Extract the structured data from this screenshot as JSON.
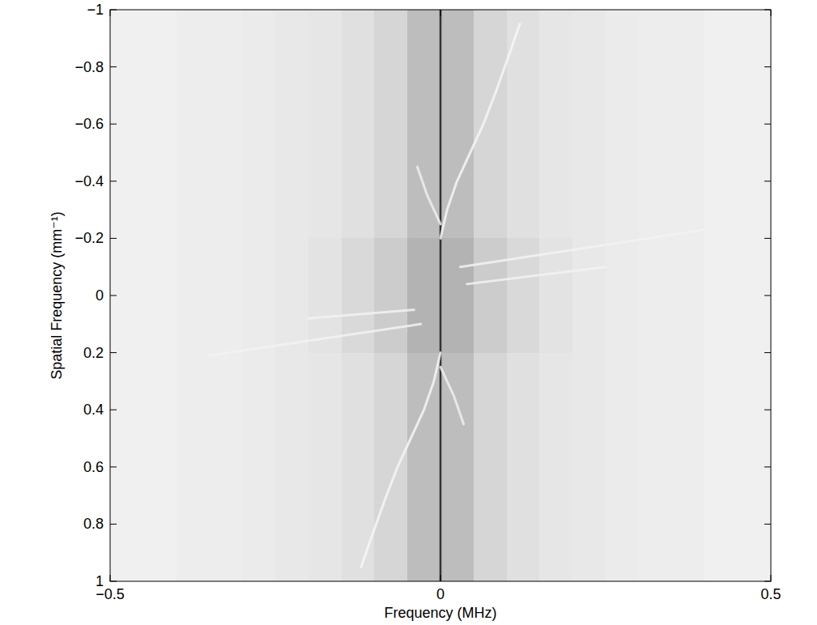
{
  "chart_data": {
    "type": "heatmap",
    "xlabel": "Frequency (MHz)",
    "ylabel": "Spatial Frequency (mm⁻¹)",
    "xlim": [
      -0.5,
      0.5
    ],
    "ylim": [
      -1,
      1
    ],
    "xticks": [
      {
        "value": -0.5,
        "label": "−0.5"
      },
      0,
      0.5
    ],
    "yticks": [
      {
        "value": -1,
        "label": "−1"
      },
      {
        "value": -0.8,
        "label": "−0.8"
      },
      {
        "value": -0.6,
        "label": "−0.6"
      },
      {
        "value": -0.4,
        "label": "−0.4"
      },
      {
        "value": -0.2,
        "label": "−0.2"
      },
      0,
      0.2,
      0.4,
      0.6,
      0.8,
      1
    ],
    "grid": false,
    "zlim": [
      0,
      1
    ],
    "cell_x": [
      -0.5,
      -0.45,
      -0.4,
      -0.35,
      -0.3,
      -0.25,
      -0.2,
      -0.15,
      -0.1,
      -0.05,
      0,
      0.05,
      0.1,
      0.15,
      0.2,
      0.25,
      0.3,
      0.35,
      0.4,
      0.45,
      0.5
    ],
    "cell_y": [
      -1,
      -0.8,
      -0.6,
      -0.4,
      -0.2,
      0,
      0.2,
      0.4,
      0.6,
      0.8,
      1
    ],
    "cells": [
      [
        0.06,
        0.06,
        0.07,
        0.07,
        0.08,
        0.09,
        0.1,
        0.12,
        0.16,
        0.26,
        0.26,
        0.16,
        0.12,
        0.1,
        0.09,
        0.08,
        0.07,
        0.07,
        0.06,
        0.06
      ],
      [
        0.06,
        0.06,
        0.07,
        0.07,
        0.08,
        0.09,
        0.1,
        0.12,
        0.16,
        0.26,
        0.26,
        0.16,
        0.12,
        0.1,
        0.09,
        0.08,
        0.07,
        0.07,
        0.06,
        0.06
      ],
      [
        0.06,
        0.06,
        0.07,
        0.07,
        0.08,
        0.09,
        0.1,
        0.12,
        0.16,
        0.26,
        0.26,
        0.16,
        0.12,
        0.1,
        0.09,
        0.08,
        0.07,
        0.07,
        0.06,
        0.06
      ],
      [
        0.06,
        0.06,
        0.07,
        0.07,
        0.08,
        0.09,
        0.1,
        0.12,
        0.16,
        0.26,
        0.26,
        0.16,
        0.12,
        0.1,
        0.09,
        0.08,
        0.07,
        0.07,
        0.06,
        0.06
      ],
      [
        0.06,
        0.06,
        0.07,
        0.07,
        0.08,
        0.09,
        0.11,
        0.15,
        0.2,
        0.3,
        0.3,
        0.2,
        0.15,
        0.11,
        0.09,
        0.08,
        0.07,
        0.07,
        0.06,
        0.06
      ],
      [
        0.06,
        0.06,
        0.07,
        0.07,
        0.08,
        0.09,
        0.11,
        0.15,
        0.2,
        0.3,
        0.3,
        0.2,
        0.15,
        0.11,
        0.09,
        0.08,
        0.07,
        0.07,
        0.06,
        0.06
      ],
      [
        0.06,
        0.06,
        0.07,
        0.07,
        0.08,
        0.09,
        0.1,
        0.12,
        0.16,
        0.26,
        0.26,
        0.16,
        0.12,
        0.1,
        0.09,
        0.08,
        0.07,
        0.07,
        0.06,
        0.06
      ],
      [
        0.06,
        0.06,
        0.07,
        0.07,
        0.08,
        0.09,
        0.1,
        0.12,
        0.16,
        0.26,
        0.26,
        0.16,
        0.12,
        0.1,
        0.09,
        0.08,
        0.07,
        0.07,
        0.06,
        0.06
      ],
      [
        0.06,
        0.06,
        0.07,
        0.07,
        0.08,
        0.09,
        0.1,
        0.12,
        0.16,
        0.26,
        0.26,
        0.16,
        0.12,
        0.1,
        0.09,
        0.08,
        0.07,
        0.07,
        0.06,
        0.06
      ],
      [
        0.06,
        0.06,
        0.07,
        0.07,
        0.08,
        0.09,
        0.1,
        0.12,
        0.16,
        0.26,
        0.26,
        0.16,
        0.12,
        0.1,
        0.09,
        0.08,
        0.07,
        0.07,
        0.06,
        0.06
      ]
    ],
    "series": [
      {
        "type": "line",
        "color": "#333333",
        "line_style": "solid",
        "x": [
          0,
          0
        ],
        "values": [
          -1,
          1
        ]
      },
      {
        "type": "line",
        "color": "#f6f6f6",
        "line_style": "solid",
        "x": [
          0,
          0.01,
          0.025,
          0.045,
          0.065,
          0.085,
          0.105,
          0.12
        ],
        "values": [
          -0.2,
          -0.3,
          -0.4,
          -0.5,
          -0.6,
          -0.72,
          -0.85,
          -0.95
        ]
      },
      {
        "type": "line",
        "color": "#f6f6f6",
        "line_style": "solid",
        "x": [
          0,
          -0.01,
          -0.025,
          -0.045,
          -0.065,
          -0.085,
          -0.105,
          -0.12
        ],
        "values": [
          0.2,
          0.3,
          0.4,
          0.5,
          0.6,
          0.72,
          0.85,
          0.95
        ]
      },
      {
        "type": "line",
        "color": "#f2f2f2",
        "line_style": "solid",
        "x": [
          0.03,
          0.4
        ],
        "values": [
          -0.1,
          -0.23
        ]
      },
      {
        "type": "line",
        "color": "#f2f2f2",
        "line_style": "solid",
        "x": [
          0.04,
          0.25
        ],
        "values": [
          -0.04,
          -0.1
        ]
      },
      {
        "type": "line",
        "color": "#f2f2f2",
        "line_style": "solid",
        "x": [
          -0.35,
          -0.03
        ],
        "values": [
          0.21,
          0.1
        ]
      },
      {
        "type": "line",
        "color": "#f2f2f2",
        "line_style": "solid",
        "x": [
          -0.2,
          -0.04
        ],
        "values": [
          0.08,
          0.05
        ]
      },
      {
        "type": "line",
        "color": "#eeeeee",
        "line_style": "solid",
        "x": [
          -0.035,
          -0.02,
          0
        ],
        "values": [
          -0.45,
          -0.35,
          -0.25
        ]
      },
      {
        "type": "line",
        "color": "#eeeeee",
        "line_style": "solid",
        "x": [
          0.035,
          0.02,
          0
        ],
        "values": [
          0.45,
          0.35,
          0.25
        ]
      }
    ]
  }
}
